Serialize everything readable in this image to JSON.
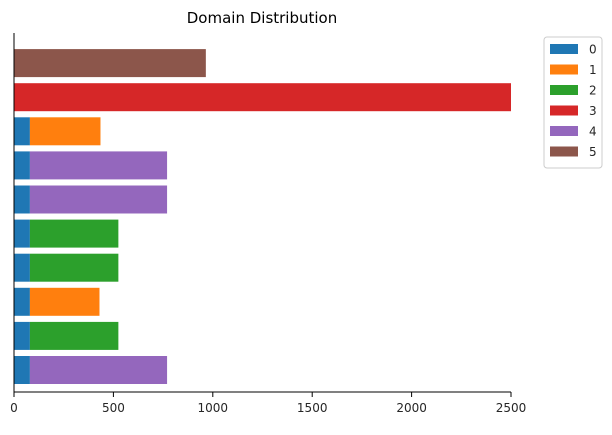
{
  "chart_data": {
    "type": "bar",
    "orientation": "horizontal",
    "stacked": true,
    "title": "Domain Distribution",
    "xlabel": "",
    "ylabel": "",
    "xlim": [
      0,
      2500
    ],
    "xticks": [
      "0",
      "500",
      "1000",
      "1500",
      "2000",
      "2500"
    ],
    "grid": false,
    "legend_position": "outside-right-top",
    "series": [
      {
        "name": "0",
        "color": "#1f77b4",
        "values": [
          80,
          80,
          80,
          80,
          80,
          80,
          80,
          80,
          0,
          0
        ]
      },
      {
        "name": "1",
        "color": "#ff7f0e",
        "values": [
          0,
          0,
          350,
          0,
          0,
          0,
          0,
          355,
          0,
          0
        ]
      },
      {
        "name": "2",
        "color": "#2ca02c",
        "values": [
          0,
          445,
          0,
          445,
          445,
          0,
          0,
          0,
          0,
          0
        ]
      },
      {
        "name": "3",
        "color": "#d62728",
        "values": [
          0,
          0,
          0,
          0,
          0,
          0,
          0,
          0,
          2500,
          0
        ]
      },
      {
        "name": "4",
        "color": "#9467bd",
        "values": [
          690,
          0,
          0,
          0,
          0,
          690,
          690,
          0,
          0,
          0
        ]
      },
      {
        "name": "5",
        "color": "#8c564b",
        "values": [
          0,
          0,
          0,
          0,
          0,
          0,
          0,
          0,
          0,
          965
        ]
      }
    ]
  }
}
